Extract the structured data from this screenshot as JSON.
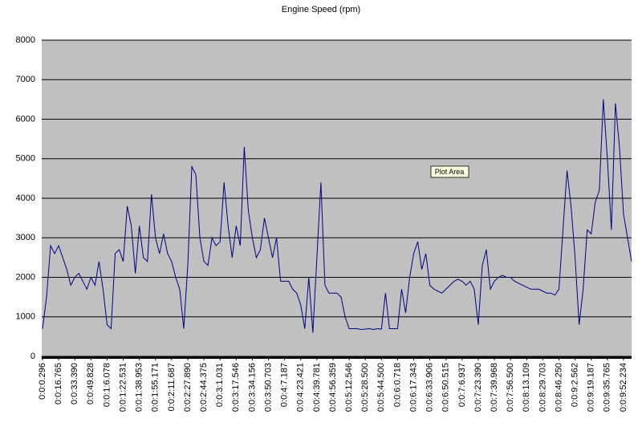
{
  "chart_data": {
    "type": "line",
    "title": "Engine Speed (rpm)",
    "tooltip": "Plot Area",
    "categories": [
      "0:0:0.296",
      null,
      null,
      null,
      "0:0:16.765",
      null,
      null,
      null,
      "0:0:33.390",
      null,
      null,
      null,
      "0:0:49.828",
      null,
      null,
      null,
      "0:0:1:6.078",
      null,
      null,
      null,
      "0:0:1:22.531",
      null,
      null,
      null,
      "0:0:1:38.953",
      null,
      null,
      null,
      "0:0:1:55.171",
      null,
      null,
      null,
      "0:0:2:11.687",
      null,
      null,
      null,
      "0:0:2:27.890",
      null,
      null,
      null,
      "0:0:2:44.375",
      null,
      null,
      null,
      "0:0:3:1.031",
      null,
      null,
      null,
      "0:0:3:17.546",
      null,
      null,
      null,
      "0:0:3:34.156",
      null,
      null,
      null,
      "0:0:3:50.703",
      null,
      null,
      null,
      "0:0:4:7.187",
      null,
      null,
      null,
      "0:0:4:23.421",
      null,
      null,
      null,
      "0:0:4:39.781",
      null,
      null,
      null,
      "0:0:4:56.359",
      null,
      null,
      null,
      "0:0:5:12.546",
      null,
      null,
      null,
      "0:0:5:28.500",
      null,
      null,
      null,
      "0:0:5:44.500",
      null,
      null,
      null,
      "0:0:6:0.718",
      null,
      null,
      null,
      "0:0:6:17.343",
      null,
      null,
      null,
      "0:0:6:33.906",
      null,
      null,
      null,
      "0:0:6:50.515",
      null,
      null,
      null,
      "0:0:7:6.937",
      null,
      null,
      null,
      "0:0:7:23.390",
      null,
      null,
      null,
      "0:0:7:39.968",
      null,
      null,
      null,
      "0:0:7:56.500",
      null,
      null,
      null,
      "0:0:8:13.109",
      null,
      null,
      null,
      "0:0:8:29.703",
      null,
      null,
      null,
      "0:0:8:46.250",
      null,
      null,
      null,
      "0:0:9:2.562",
      null,
      null,
      null,
      "0:0:9:19.187",
      null,
      null,
      null,
      "0:0:9:35.765",
      null,
      null,
      null,
      "0:0:9:52.234",
      null,
      null
    ],
    "series": [
      {
        "color": "#000080",
        "values": [
          700,
          1500,
          2800,
          2600,
          2800,
          2500,
          2200,
          1800,
          2000,
          2100,
          1900,
          1700,
          2000,
          1800,
          2400,
          1700,
          800,
          700,
          2600,
          2700,
          2400,
          3800,
          3300,
          2100,
          3300,
          2500,
          2400,
          4100,
          3000,
          2600,
          3100,
          2600,
          2400,
          2000,
          1700,
          700,
          2300,
          4800,
          4600,
          3000,
          2400,
          2300,
          3000,
          2800,
          2900,
          4400,
          3300,
          2500,
          3300,
          2800,
          5300,
          3700,
          3000,
          2500,
          2700,
          3500,
          3000,
          2500,
          3000,
          1900,
          1900,
          1900,
          1700,
          1600,
          1300,
          700,
          2000,
          600,
          2500,
          4400,
          1800,
          1600,
          1600,
          1600,
          1500,
          1000,
          700,
          700,
          700,
          680,
          690,
          700,
          680,
          700,
          690,
          1600,
          700,
          700,
          700,
          1700,
          1100,
          2000,
          2600,
          2900,
          2200,
          2600,
          1800,
          1700,
          1650,
          1600,
          1700,
          1800,
          1900,
          1950,
          1900,
          1800,
          1900,
          1700,
          800,
          2300,
          2700,
          1700,
          1900,
          2000,
          2050,
          2000,
          2000,
          1900,
          1850,
          1800,
          1750,
          1700,
          1700,
          1700,
          1650,
          1600,
          1600,
          1550,
          1700,
          3200,
          4700,
          3800,
          2500,
          800,
          1700,
          3200,
          3100,
          3900,
          4200,
          6500,
          5000,
          3200,
          6400,
          5300,
          3600,
          3000,
          2400
        ]
      }
    ],
    "ylim": [
      0,
      8000
    ],
    "yticks": [
      0,
      1000,
      2000,
      3000,
      4000,
      5000,
      6000,
      7000,
      8000
    ],
    "grid": true
  }
}
